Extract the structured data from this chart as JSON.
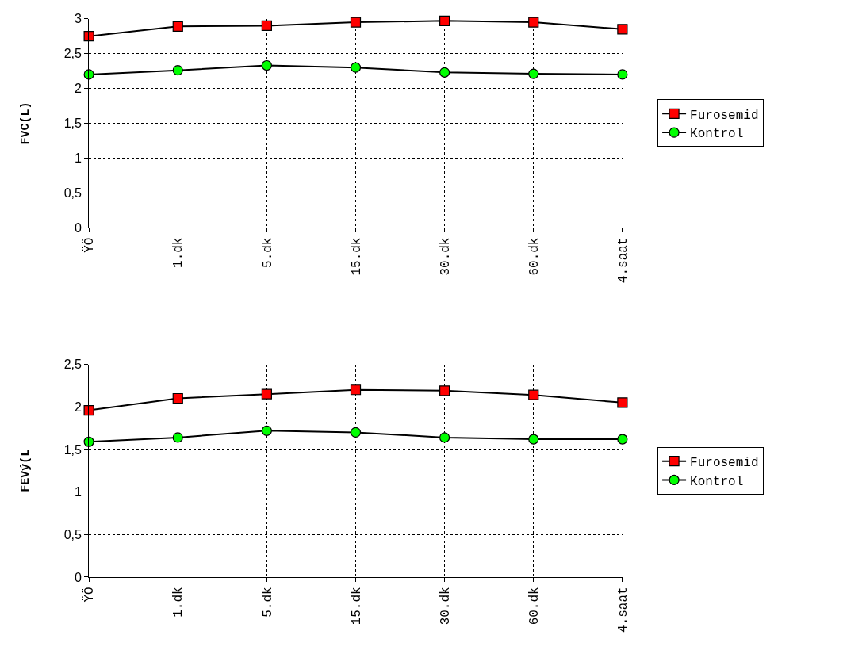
{
  "chart_data": [
    {
      "type": "line",
      "ylabel": "FVC(L)",
      "categories": [
        "ŸÖ",
        "1.dk",
        "5.dk",
        "15.dk",
        "30.dk",
        "60.dk",
        "4.saat"
      ],
      "ylim": [
        0,
        3
      ],
      "yticks": [
        0,
        {
          "value": 0.5,
          "label": "0,5"
        },
        1,
        {
          "value": 1.5,
          "label": "1,5"
        },
        2,
        {
          "value": 2.5,
          "label": "2,5"
        },
        3
      ],
      "grid": true,
      "legend": "right",
      "series": [
        {
          "name": "Furosemid",
          "color": "#ff0000",
          "marker": "square",
          "values": [
            2.75,
            2.89,
            2.9,
            2.95,
            2.97,
            2.95,
            2.85
          ]
        },
        {
          "name": "Kontrol",
          "color": "#00ff00",
          "marker": "circle",
          "values": [
            2.2,
            2.26,
            2.33,
            2.3,
            2.23,
            2.21,
            2.2
          ]
        }
      ]
    },
    {
      "type": "line",
      "ylabel": "FEVý(L",
      "categories": [
        "ŸÖ",
        "1.dk",
        "5.dk",
        "15.dk",
        "30.dk",
        "60.dk",
        "4.saat"
      ],
      "ylim": [
        0,
        2.5
      ],
      "yticks": [
        0,
        {
          "value": 0.5,
          "label": "0,5"
        },
        1,
        {
          "value": 1.5,
          "label": "1,5"
        },
        2,
        {
          "value": 2.5,
          "label": "2,5"
        }
      ],
      "grid": true,
      "legend": "right",
      "series": [
        {
          "name": "Furosemid",
          "color": "#ff0000",
          "marker": "square",
          "values": [
            1.96,
            2.1,
            2.15,
            2.2,
            2.19,
            2.14,
            2.05
          ]
        },
        {
          "name": "Kontrol",
          "color": "#00ff00",
          "marker": "circle",
          "values": [
            1.59,
            1.64,
            1.72,
            1.7,
            1.64,
            1.62,
            1.62
          ]
        }
      ]
    }
  ]
}
